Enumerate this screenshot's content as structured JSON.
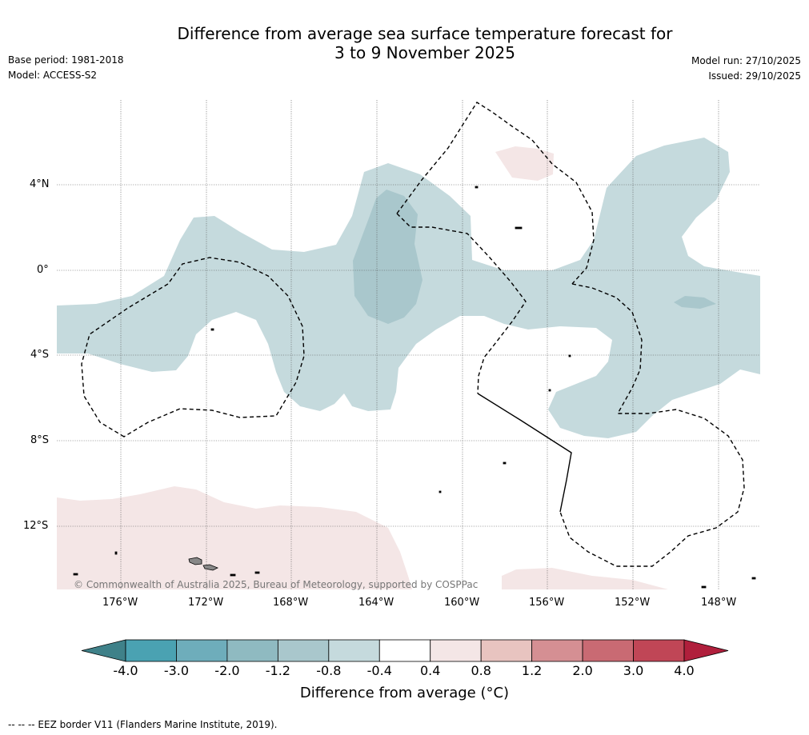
{
  "title_line1": "Difference from average sea surface temperature forecast for",
  "title_line2": "3 to 9 November 2025",
  "base_period": "Base period: 1981-2018",
  "model": "Model: ACCESS-S2",
  "model_run": "Model run: 27/10/2025",
  "issued": "Issued: 29/10/2025",
  "copyright": "© Commonwealth of Australia 2025, Bureau of Meteorology, supported by COSPPac",
  "lat_labels": [
    "4°N",
    "0°",
    "4°S",
    "8°S",
    "12°S"
  ],
  "lon_labels": [
    "176°W",
    "172°W",
    "168°W",
    "164°W",
    "160°W",
    "156°W",
    "152°W",
    "148°W"
  ],
  "colorbar": {
    "title": "Difference from average (°C)",
    "ticks": [
      "-4.0",
      "-3.0",
      "-2.0",
      "-1.2",
      "-0.8",
      "-0.4",
      "0.4",
      "0.8",
      "1.2",
      "2.0",
      "3.0",
      "4.0"
    ],
    "colors": [
      "#3f8189",
      "#4aa2b2",
      "#6eadbb",
      "#8fbac1",
      "#a9c7cc",
      "#c5dadd",
      "#ffffff",
      "#f4e6e6",
      "#e8c4c0",
      "#d58f93",
      "#c96a73",
      "#c04656",
      "#b01f3c"
    ]
  },
  "footnote": "--  --  -- EEZ border V11 (Flanders Marine Institute, 2019)."
}
